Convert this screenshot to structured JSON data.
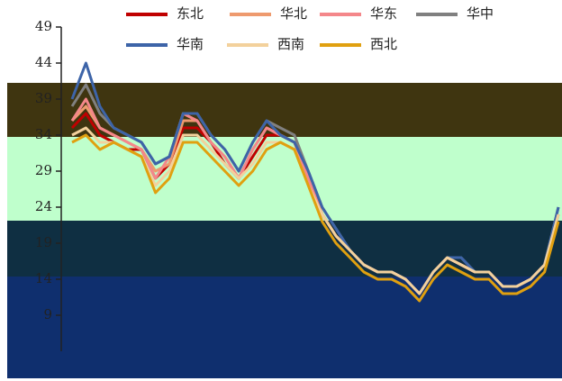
{
  "chart_data": {
    "type": "line",
    "categories": [
      null,
      null,
      null,
      null,
      null,
      null,
      null,
      null,
      null,
      null,
      null,
      null,
      null,
      null,
      null,
      null,
      null,
      null,
      null,
      null,
      null,
      null,
      null,
      null,
      null,
      null,
      null,
      null,
      null,
      null,
      null,
      null,
      null,
      null,
      null,
      null
    ],
    "ylim": [
      4,
      49
    ],
    "yticks": [
      49,
      44,
      39,
      34,
      29,
      24,
      19,
      14,
      9
    ],
    "series": [
      {
        "name": "东北",
        "color": "#c00000",
        "values": [
          35,
          37,
          34,
          33,
          32,
          32,
          28,
          30,
          35,
          35,
          33,
          30,
          28,
          31,
          34,
          34,
          33,
          28,
          23,
          20,
          18,
          16,
          15,
          15,
          14,
          12,
          15,
          17,
          16,
          15,
          15,
          13,
          13,
          14,
          16,
          23
        ]
      },
      {
        "name": "华北",
        "color": "#ee9a6e",
        "values": [
          36,
          38,
          35,
          34,
          33,
          32,
          29,
          30,
          36,
          36,
          33,
          31,
          28,
          32,
          35,
          34,
          33,
          28,
          23,
          20,
          18,
          16,
          15,
          15,
          14,
          12,
          15,
          17,
          16,
          15,
          15,
          13,
          13,
          14,
          16,
          23
        ]
      },
      {
        "name": "华东",
        "color": "#f4878a",
        "values": [
          36,
          39,
          35,
          34,
          33,
          32,
          28,
          31,
          37,
          36,
          33,
          31,
          28,
          32,
          35,
          34,
          33,
          28,
          23,
          20,
          18,
          16,
          15,
          15,
          14,
          12,
          15,
          17,
          16,
          15,
          15,
          13,
          13,
          14,
          16,
          23
        ]
      },
      {
        "name": "华中",
        "color": "#808080",
        "values": [
          38,
          41,
          37,
          35,
          34,
          33,
          30,
          31,
          37,
          37,
          34,
          32,
          29,
          33,
          36,
          35,
          34,
          29,
          24,
          21,
          18,
          16,
          15,
          15,
          14,
          12,
          15,
          17,
          17,
          15,
          15,
          13,
          13,
          14,
          16,
          24
        ]
      },
      {
        "name": "华南",
        "color": "#3d64a8",
        "values": [
          39,
          44,
          38,
          35,
          34,
          33,
          30,
          31,
          37,
          37,
          34,
          32,
          29,
          33,
          36,
          34,
          33,
          29,
          24,
          21,
          18,
          16,
          15,
          15,
          14,
          12,
          15,
          17,
          17,
          15,
          15,
          13,
          13,
          14,
          16,
          24
        ]
      },
      {
        "name": "西南",
        "color": "#f3d19c",
        "values": [
          34,
          35,
          33,
          33,
          32,
          31,
          27,
          29,
          34,
          34,
          32,
          30,
          28,
          30,
          33,
          33,
          32,
          27,
          23,
          20,
          18,
          16,
          15,
          15,
          14,
          12,
          15,
          17,
          16,
          15,
          15,
          13,
          13,
          14,
          16,
          23
        ]
      },
      {
        "name": "西北",
        "color": "#e0a010",
        "values": [
          33,
          34,
          32,
          33,
          32,
          31,
          26,
          28,
          33,
          33,
          31,
          29,
          27,
          29,
          32,
          33,
          32,
          27,
          22,
          19,
          17,
          15,
          14,
          14,
          13,
          11,
          14,
          16,
          15,
          14,
          14,
          12,
          12,
          13,
          15,
          22
        ]
      }
    ]
  }
}
